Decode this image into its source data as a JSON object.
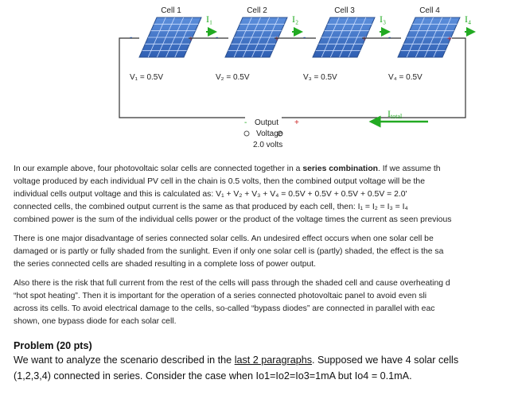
{
  "diagram": {
    "cells": [
      {
        "label": "Cell 1",
        "current": "I₁",
        "voltage": "V₁ = 0.5V"
      },
      {
        "label": "Cell 2",
        "current": "I₂",
        "voltage": "V₂ = 0.5V"
      },
      {
        "label": "Cell 3",
        "current": "I₃",
        "voltage": "V₃ = 0.5V"
      },
      {
        "label": "Cell 4",
        "current": "I₄",
        "voltage": "V₄ = 0.5V"
      }
    ],
    "terminals": {
      "minus": "-",
      "plus": "+"
    },
    "output": {
      "minus": "-",
      "line1": "Output",
      "plus": "+",
      "line2": "Voltage",
      "line3": "2.0 volts"
    },
    "total_current": {
      "main": "I",
      "sub": "total"
    }
  },
  "paragraphs": [
    {
      "lines": [
        {
          "before": "In our example above, four photovoltaic solar cells are connected together in a ",
          "bold": "series combination",
          "after": ". If we assume th"
        },
        {
          "text": "voltage produced by each individual PV cell in the chain is 0.5 volts, then the combined output voltage will be the"
        },
        {
          "text": "individual cells output voltage and this is calculated as: V₁ + V₂ + V₃ + V₄ = 0.5V + 0.5V + 0.5V + 0.5V = 2.0'"
        },
        {
          "text": "connected cells, the combined output current is the same as that produced by each cell, then: I₁ = I₂ = I₃ = I₄"
        },
        {
          "text": "combined power is the sum of the individual cells power or the product of the voltage times the current as seen previous"
        }
      ]
    },
    {
      "lines": [
        {
          "text": "There is one major disadvantage of series connected solar cells. An undesired effect occurs when one solar cell be"
        },
        {
          "text": "damaged or is partly or fully shaded from the sunlight. Even if only one solar cell is (partly) shaded, the effect is the sa"
        },
        {
          "text": "the series connected cells are shaded resulting in a complete loss of power output."
        }
      ]
    },
    {
      "lines": [
        {
          "text": "Also there is the risk that full current from the rest of the cells will pass through the shaded cell and cause overheating d"
        },
        {
          "text": "“hot spot heating”. Then it is important for the operation of a series connected photovoltaic panel to avoid even sli"
        },
        {
          "text": "across its cells. To avoid electrical damage to the cells, so-called “bypass diodes” are connected in parallel with eac"
        },
        {
          "text": "shown, one bypass diode for each solar cell."
        }
      ]
    }
  ],
  "problem": {
    "title": "Problem (20 pts)",
    "line1": {
      "before": "We want to analyze the scenario described in the ",
      "link": "last 2 paragraphs",
      "after": ". Supposed we have 4 solar cells"
    },
    "line2": "(1,2,3,4) connected in series. Consider the case when Io1=Io2=Io3=1mA but Io4 = 0.1mA."
  }
}
